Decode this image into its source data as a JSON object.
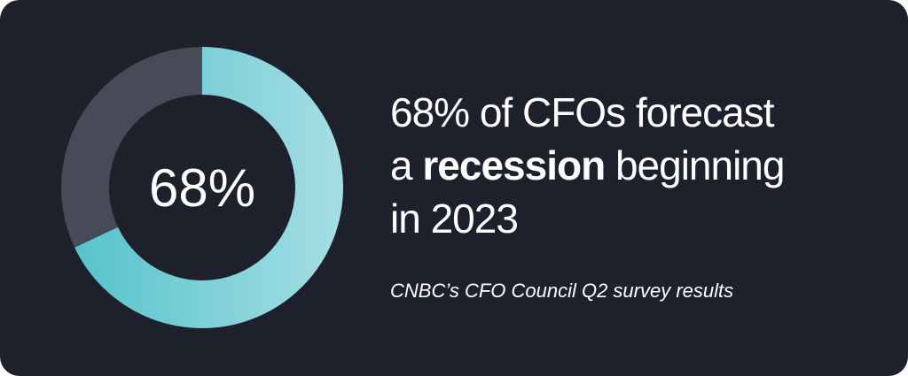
{
  "chart_data": {
    "type": "donut",
    "values": [
      68,
      32
    ],
    "value_labels": [
      "68%",
      null
    ],
    "colors": [
      "#7fd3dc",
      "#474a57"
    ],
    "headline": {
      "line1": "68% of CFOs forecast",
      "line2": [
        "a ",
        "recession",
        " beginning"
      ],
      "line3": "in 2023"
    },
    "source": "CNBC’s CFO Council Q2 survey results"
  }
}
